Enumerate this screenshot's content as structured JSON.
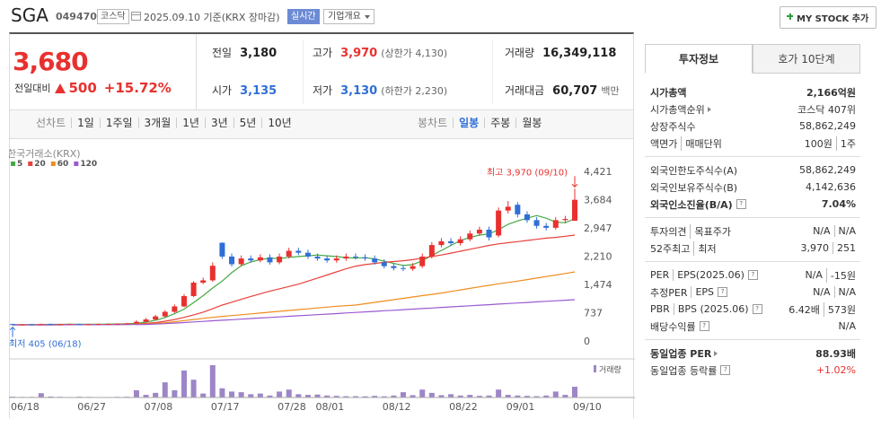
{
  "header": {
    "name": "SGA",
    "code": "049470",
    "market": "코스닥",
    "date": "2025.09.10 기준(KRX 장마감)",
    "realtime": "실시간",
    "overview": "기업개요",
    "mystock": "MY STOCK 추가"
  },
  "price": {
    "current": "3,680",
    "change_label": "전일대비",
    "change": "500",
    "change_pct": "+15.72%",
    "color": "#e8312f"
  },
  "summary": [
    [
      {
        "label": "전일",
        "value": "3,180",
        "color": "#222"
      },
      {
        "label": "고가",
        "value": "3,970",
        "note": "(상한가 4,130)",
        "color": "#e8312f"
      },
      {
        "label": "거래량",
        "value": "16,349,118",
        "color": "#222"
      }
    ],
    [
      {
        "label": "시가",
        "value": "3,135",
        "color": "#2f6fd6"
      },
      {
        "label": "저가",
        "value": "3,130",
        "note": "(하한가 2,230)",
        "color": "#2f6fd6"
      },
      {
        "label": "거래대금",
        "value": "60,707",
        "note": "백만",
        "color": "#222"
      }
    ]
  ],
  "tabs": {
    "line": "선차트",
    "line_periods": [
      "1일",
      "1주일",
      "3개월",
      "1년",
      "3년",
      "5년",
      "10년"
    ],
    "candle": "봉차트",
    "candle_periods": [
      "일봉",
      "주봉",
      "월봉"
    ],
    "candle_selected": 0
  },
  "side": {
    "tabs": [
      "투자정보",
      "호가 10단계"
    ],
    "active": 0,
    "sections": [
      [
        {
          "label": [
            "시가총액"
          ],
          "value": [
            "2,166억원"
          ],
          "strong": true
        },
        {
          "label": [
            "시가총액순위"
          ],
          "link": true,
          "value": [
            "코스닥 407위"
          ]
        },
        {
          "label": [
            "상장주식수"
          ],
          "value": [
            "58,862,249"
          ]
        },
        {
          "label": [
            "액면가",
            "매매단위"
          ],
          "value": [
            "100원",
            "1주"
          ]
        }
      ],
      [
        {
          "label": [
            "외국인한도주식수(A)"
          ],
          "value": [
            "58,862,249"
          ]
        },
        {
          "label": [
            "외국인보유주식수(B)"
          ],
          "value": [
            "4,142,636"
          ]
        },
        {
          "label": [
            "외국인소진율(B/A)"
          ],
          "help": true,
          "strong": true,
          "value": [
            "7.04%"
          ]
        }
      ],
      [
        {
          "label": [
            "투자의견",
            "목표주가"
          ],
          "value": [
            "N/A",
            "N/A"
          ]
        },
        {
          "label": [
            "52주최고",
            "최저"
          ],
          "value": [
            "3,970",
            "251"
          ]
        }
      ],
      [
        {
          "label": [
            "PER",
            "EPS(2025.06)"
          ],
          "help": true,
          "value": [
            "N/A",
            "-15원"
          ]
        },
        {
          "label": [
            "추정PER",
            "EPS"
          ],
          "help": true,
          "value": [
            "N/A",
            "N/A"
          ]
        },
        {
          "label": [
            "PBR",
            "BPS (2025.06)"
          ],
          "help": true,
          "value": [
            "6.42배",
            "573원"
          ]
        },
        {
          "label": [
            "배당수익률"
          ],
          "help": true,
          "value": [
            "N/A"
          ]
        }
      ],
      [
        {
          "label": [
            "동일업종 PER"
          ],
          "link": true,
          "strong": true,
          "value": [
            "88.93배"
          ]
        },
        {
          "label": [
            "동일업종 등락률"
          ],
          "help": true,
          "value": [
            "+1.02%"
          ],
          "color": "#e8312f"
        }
      ]
    ]
  },
  "chart_data": {
    "type": "candlestick",
    "source": "한국거래소(KRX)",
    "categories": [
      "06/18",
      null,
      null,
      null,
      null,
      null,
      null,
      "06/27",
      null,
      null,
      null,
      null,
      null,
      null,
      "07/08",
      null,
      null,
      null,
      null,
      null,
      null,
      "07/17",
      null,
      null,
      null,
      null,
      null,
      null,
      "07/28",
      null,
      null,
      null,
      "08/01",
      null,
      null,
      null,
      null,
      null,
      null,
      "08/12",
      null,
      null,
      null,
      null,
      null,
      null,
      "08/22",
      null,
      null,
      null,
      null,
      null,
      "09/01",
      null,
      null,
      null,
      null,
      null,
      null,
      "09/10"
    ],
    "open": [
      440,
      420,
      435,
      425,
      440,
      430,
      435,
      440,
      430,
      435,
      440,
      445,
      450,
      460,
      500,
      560,
      640,
      760,
      900,
      1170,
      1520,
      1580,
      2560,
      2200,
      2000,
      2150,
      2100,
      2180,
      2050,
      2200,
      2350,
      2300,
      2200,
      2150,
      2100,
      2150,
      2200,
      2180,
      2150,
      2050,
      1950,
      1900,
      1880,
      1950,
      2200,
      2500,
      2600,
      2550,
      2650,
      2800,
      2900,
      2750,
      3400,
      3550,
      3300,
      3150,
      3000,
      2950,
      3150,
      3135
    ],
    "high": [
      450,
      440,
      445,
      450,
      450,
      445,
      450,
      450,
      445,
      450,
      455,
      460,
      470,
      540,
      600,
      680,
      800,
      950,
      1220,
      1560,
      1650,
      2050,
      2570,
      2280,
      2230,
      2230,
      2260,
      2260,
      2280,
      2430,
      2430,
      2380,
      2280,
      2230,
      2230,
      2280,
      2280,
      2260,
      2230,
      2130,
      2030,
      1980,
      2030,
      2280,
      2580,
      2680,
      2680,
      2730,
      2880,
      2980,
      2980,
      3480,
      3650,
      3620,
      3380,
      3230,
      3080,
      3230,
      3260,
      3970
    ],
    "low": [
      405,
      415,
      418,
      418,
      422,
      422,
      428,
      422,
      422,
      428,
      432,
      438,
      442,
      450,
      480,
      540,
      620,
      730,
      880,
      1140,
      1480,
      1540,
      2140,
      1940,
      1950,
      2040,
      2050,
      1990,
      2000,
      2150,
      2240,
      2140,
      2090,
      2040,
      2040,
      2090,
      2120,
      2090,
      1990,
      1890,
      1840,
      1820,
      1830,
      1900,
      2150,
      2440,
      2480,
      2490,
      2600,
      2740,
      2620,
      2700,
      3320,
      3220,
      3080,
      2930,
      2880,
      2900,
      3080,
      3130
    ],
    "close": [
      420,
      430,
      425,
      440,
      430,
      435,
      440,
      430,
      435,
      440,
      445,
      450,
      460,
      500,
      560,
      640,
      760,
      900,
      1170,
      1520,
      1580,
      1960,
      2200,
      2000,
      2150,
      2100,
      2180,
      2050,
      2200,
      2350,
      2300,
      2200,
      2150,
      2100,
      2150,
      2200,
      2180,
      2150,
      2050,
      1950,
      1900,
      1880,
      1950,
      2200,
      2500,
      2600,
      2550,
      2650,
      2800,
      2900,
      2700,
      3400,
      3500,
      3300,
      3150,
      3000,
      2950,
      3150,
      3180,
      3680
    ],
    "up_color": "#e8312f",
    "down_color": "#2f6fd6",
    "series": [
      {
        "name": "5",
        "color": "#44a944",
        "values": [
          420,
          425,
          425,
          430,
          432,
          432,
          434,
          436,
          436,
          438,
          440,
          443,
          447,
          460,
          490,
          540,
          610,
          710,
          830,
          1000,
          1180,
          1380,
          1560,
          1780,
          1960,
          2060,
          2120,
          2160,
          2150,
          2180,
          2200,
          2220,
          2240,
          2220,
          2200,
          2170,
          2160,
          2170,
          2140,
          2080,
          2020,
          1970,
          1990,
          2090,
          2230,
          2360,
          2490,
          2620,
          2700,
          2760,
          2790,
          2900,
          3040,
          3130,
          3200,
          3270,
          3200,
          3100,
          3080,
          3190
        ]
      },
      {
        "name": "20",
        "color": "#e8413b",
        "values": [
          420,
          420,
          421,
          421,
          422,
          423,
          424,
          425,
          426,
          428,
          430,
          432,
          435,
          440,
          455,
          480,
          515,
          560,
          615,
          680,
          750,
          840,
          935,
          1010,
          1085,
          1160,
          1230,
          1300,
          1360,
          1420,
          1480,
          1560,
          1640,
          1720,
          1800,
          1880,
          1950,
          1990,
          2020,
          2050,
          2070,
          2090,
          2120,
          2160,
          2200,
          2240,
          2290,
          2340,
          2390,
          2440,
          2490,
          2530,
          2560,
          2590,
          2620,
          2650,
          2680,
          2700,
          2730,
          2760
        ]
      },
      {
        "name": "60",
        "color": "#f08c1e",
        "values": [
          420,
          420,
          421,
          421,
          422,
          422,
          423,
          424,
          425,
          426,
          427,
          429,
          431,
          434,
          440,
          455,
          475,
          500,
          530,
          560,
          590,
          615,
          640,
          662,
          684,
          706,
          728,
          750,
          772,
          794,
          816,
          838,
          860,
          882,
          904,
          920,
          935,
          970,
          1005,
          1040,
          1075,
          1110,
          1145,
          1180,
          1215,
          1250,
          1290,
          1330,
          1370,
          1410,
          1450,
          1490,
          1525,
          1560,
          1600,
          1640,
          1680,
          1720,
          1760,
          1800
        ]
      },
      {
        "name": "120",
        "color": "#9b59d0",
        "values": [
          420,
          420,
          421,
          421,
          422,
          422,
          423,
          423,
          424,
          424,
          425,
          426,
          427,
          428,
          430,
          440,
          452,
          465,
          480,
          495,
          510,
          525,
          540,
          555,
          569,
          584,
          598,
          613,
          627,
          642,
          656,
          671,
          685,
          700,
          714,
          729,
          743,
          758,
          772,
          787,
          801,
          816,
          830,
          845,
          859,
          874,
          888,
          903,
          917,
          932,
          946,
          961,
          975,
          990,
          1004,
          1019,
          1033,
          1047,
          1062,
          1076
        ]
      }
    ],
    "volume": {
      "name": "거래량",
      "color": "#9d86c7",
      "values": [
        1200000,
        900000,
        1000000,
        6500000,
        1500000,
        1100000,
        800000,
        1200000,
        900000,
        700000,
        800000,
        1000000,
        1200000,
        11000000,
        4000000,
        7000000,
        23000000,
        11000000,
        41000000,
        27000000,
        6000000,
        49000000,
        14000000,
        9000000,
        8000000,
        5000000,
        6000000,
        3000000,
        9000000,
        12000000,
        5000000,
        4000000,
        4500000,
        3000000,
        2500000,
        2000000,
        2000000,
        1800000,
        2500000,
        1800000,
        3000000,
        8000000,
        3500000,
        12000000,
        7000000,
        3500000,
        5000000,
        3000000,
        4000000,
        2500000,
        3000000,
        12000000,
        4000000,
        3000000,
        2500000,
        2000000,
        3000000,
        9000000,
        4000000,
        16349118
      ]
    },
    "ylim": [
      -351,
      4795
    ],
    "yticks": [
      0,
      737,
      {
        "value": 1474,
        "label": "1,474"
      },
      {
        "value": 2210,
        "label": "2,210"
      },
      {
        "value": 2947,
        "label": "2,947"
      },
      {
        "value": 3684,
        "label": "3,684"
      },
      {
        "value": 4421,
        "label": "4,421"
      }
    ],
    "grid": false,
    "annotations": [
      {
        "text": "최고 3,970 (09/10)",
        "at": 59,
        "value": 3970,
        "color": "#e8312f"
      },
      {
        "text": "최저 405 (06/18)",
        "at": 0,
        "value": 405,
        "color": "#2f6fd6"
      }
    ]
  }
}
